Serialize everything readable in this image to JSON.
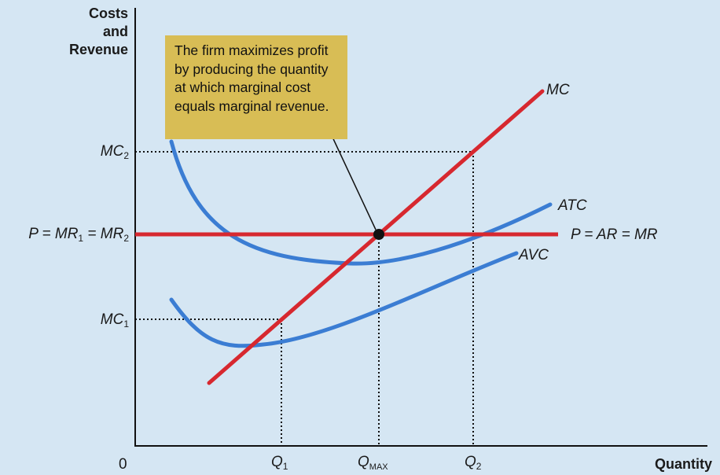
{
  "chart_data": {
    "type": "line",
    "title": "",
    "xlabel": "Quantity",
    "ylabel_lines": [
      "Costs",
      "and",
      "Revenue"
    ],
    "origin_label": "0",
    "x_ticks": [
      {
        "base": "Q",
        "sub": "1"
      },
      {
        "base": "Q",
        "sub": "MAX"
      },
      {
        "base": "Q",
        "sub": "2"
      }
    ],
    "y_ticks": [
      {
        "key": "MC2",
        "base": "MC",
        "sub": "2"
      },
      {
        "key": "P",
        "main": "P = MR",
        "sub1": "1",
        "mid": " = MR",
        "sub2": "2"
      },
      {
        "key": "MC1",
        "base": "MC",
        "sub": "1"
      }
    ],
    "series": [
      {
        "name": "MC",
        "color": "#d7282f"
      },
      {
        "name": "ATC",
        "color": "#3b7dd3"
      },
      {
        "name": "AVC",
        "color": "#3b7dd3"
      },
      {
        "name": "P = AR = MR",
        "color": "#d7282f"
      }
    ],
    "annotation_lines": [
      "The firm maximizes profit",
      "by producing the quantity",
      "at which marginal cost",
      "equals marginal revenue."
    ],
    "colors": {
      "background": "#d5e6f3",
      "callout": "#d8bd55",
      "red": "#d7282f",
      "blue": "#3b7dd3"
    }
  }
}
